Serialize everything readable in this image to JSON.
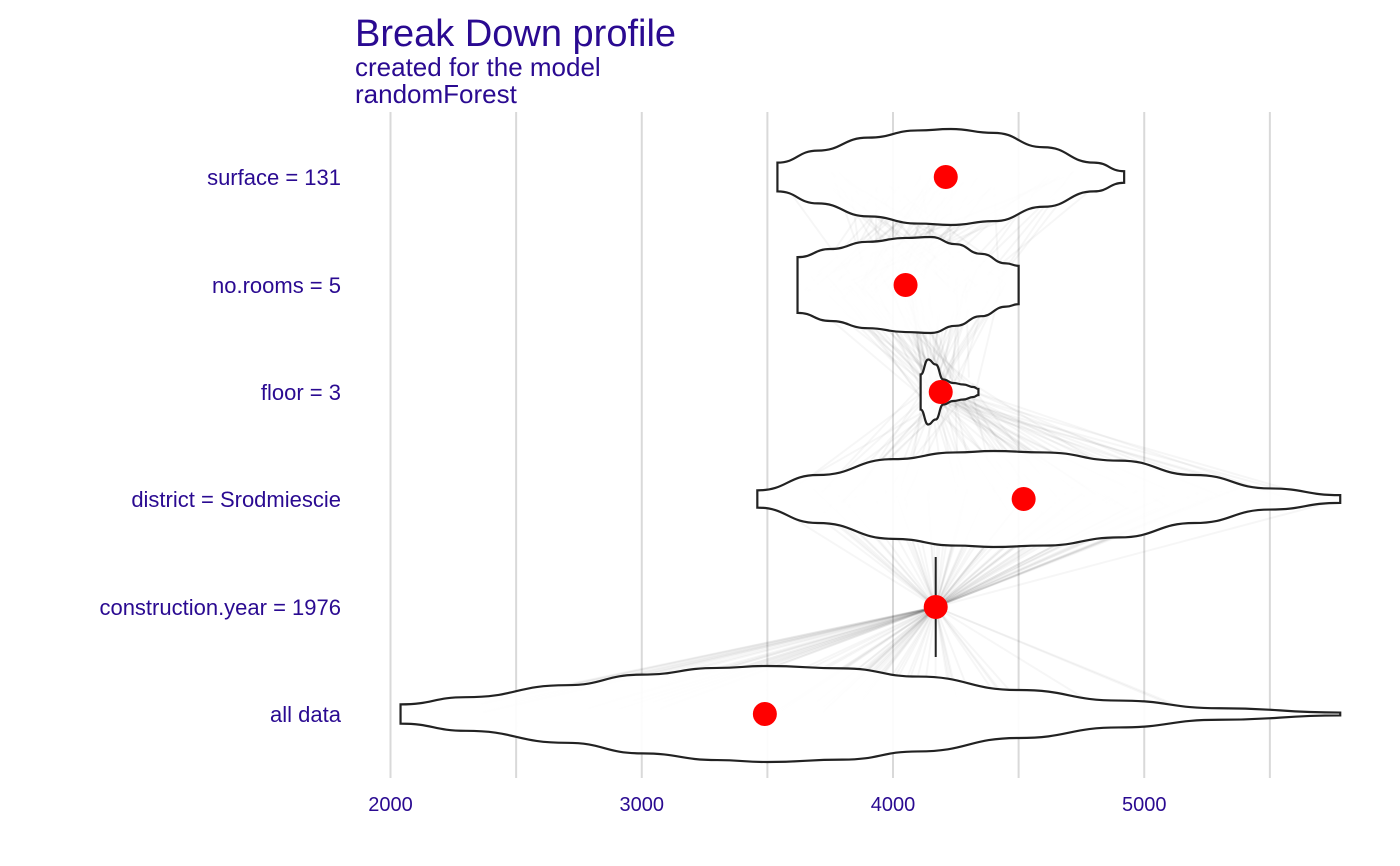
{
  "chart_data": {
    "type": "violin",
    "title": "Break Down profile",
    "subtitle": "created for the  model",
    "subtitle2": "randomForest",
    "xlabel": "",
    "ylabel": "",
    "xlim": [
      1950,
      5780
    ],
    "x_ticks": [
      2000,
      3000,
      4000,
      5000
    ],
    "x_minor_gridlines": [
      2500,
      3500,
      4500,
      5500
    ],
    "grid": true,
    "colors": {
      "text": "#2a0a91",
      "point": "#ff0000",
      "outline": "#222222",
      "grid": "#d9d9d9"
    },
    "rows": [
      {
        "label": "surface = 131",
        "mean": 4210,
        "min": 3540,
        "max": 4920,
        "density": [
          [
            3540,
            0.3
          ],
          [
            3700,
            0.55
          ],
          [
            3900,
            0.82
          ],
          [
            4100,
            0.97
          ],
          [
            4230,
            1.0
          ],
          [
            4400,
            0.92
          ],
          [
            4600,
            0.62
          ],
          [
            4800,
            0.3
          ],
          [
            4920,
            0.12
          ]
        ]
      },
      {
        "label": "no.rooms = 5",
        "mean": 4050,
        "min": 3620,
        "max": 4500,
        "density": [
          [
            3620,
            0.58
          ],
          [
            3750,
            0.75
          ],
          [
            3900,
            0.9
          ],
          [
            4050,
            0.98
          ],
          [
            4150,
            1.0
          ],
          [
            4250,
            0.85
          ],
          [
            4350,
            0.65
          ],
          [
            4450,
            0.45
          ],
          [
            4500,
            0.4
          ]
        ]
      },
      {
        "label": "floor = 3",
        "mean": 4190,
        "min": 4110,
        "max": 4340,
        "density": [
          [
            4110,
            0.35
          ],
          [
            4140,
            0.65
          ],
          [
            4170,
            0.55
          ],
          [
            4200,
            0.25
          ],
          [
            4240,
            0.18
          ],
          [
            4280,
            0.15
          ],
          [
            4320,
            0.1
          ],
          [
            4340,
            0.06
          ]
        ]
      },
      {
        "label": "district = Srodmiescie",
        "mean": 4520,
        "min": 3460,
        "max": 5780,
        "density": [
          [
            3460,
            0.18
          ],
          [
            3700,
            0.5
          ],
          [
            4000,
            0.83
          ],
          [
            4250,
            0.97
          ],
          [
            4400,
            1.0
          ],
          [
            4600,
            0.97
          ],
          [
            4900,
            0.8
          ],
          [
            5200,
            0.5
          ],
          [
            5500,
            0.22
          ],
          [
            5780,
            0.08
          ]
        ]
      },
      {
        "label": "construction.year = 1976",
        "mean": 4170,
        "min": 4170,
        "max": 4170,
        "density": []
      },
      {
        "label": "all data",
        "mean": 3490,
        "min": 2040,
        "max": 5780,
        "density": [
          [
            2040,
            0.2
          ],
          [
            2300,
            0.35
          ],
          [
            2700,
            0.6
          ],
          [
            3000,
            0.82
          ],
          [
            3300,
            0.96
          ],
          [
            3500,
            1.0
          ],
          [
            3800,
            0.95
          ],
          [
            4100,
            0.78
          ],
          [
            4500,
            0.5
          ],
          [
            4900,
            0.28
          ],
          [
            5300,
            0.12
          ],
          [
            5780,
            0.03
          ]
        ]
      }
    ]
  }
}
